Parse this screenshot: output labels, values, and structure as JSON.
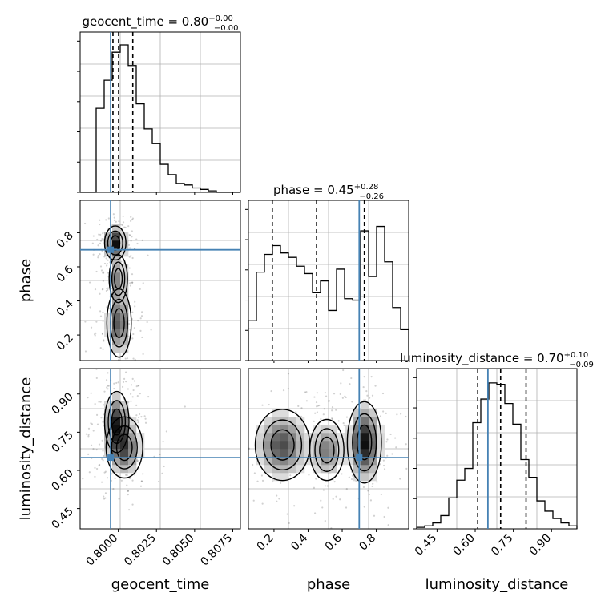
{
  "colors": {
    "truth": "#4682b4",
    "hist": "#000000",
    "grid": "#b0b0b0",
    "points": "#000000"
  },
  "chart_data": {
    "type": "corner",
    "parameters": [
      "geocent_time",
      "phase",
      "luminosity_distance"
    ],
    "truths": {
      "geocent_time": 0.7995,
      "phase": 0.7,
      "luminosity_distance": 0.65
    },
    "titles": {
      "geocent_time": {
        "prefix": "geocent_time = ",
        "median": "0.80",
        "plus": "+0.00",
        "minus": "−0.00"
      },
      "phase": {
        "prefix": "phase = ",
        "median": "0.45",
        "plus": "+0.28",
        "minus": "−0.26"
      },
      "luminosity_distance": {
        "prefix": "luminosity_distance = ",
        "median": "0.70",
        "plus": "+0.10",
        "minus": "−0.09"
      }
    },
    "ranges": {
      "geocent_time": [
        0.7975,
        0.808
      ],
      "phase": [
        0.05,
        0.99
      ],
      "luminosity_distance": [
        0.37,
        1.0
      ]
    },
    "ticks": {
      "geocent_time": [
        "0.8000",
        "0.8025",
        "0.8050",
        "0.8075"
      ],
      "phase": [
        "0.2",
        "0.4",
        "0.6",
        "0.8"
      ],
      "luminosity_distance": [
        "0.45",
        "0.60",
        "0.75",
        "0.90"
      ]
    },
    "quantiles": {
      "geocent_time": [
        0.79965,
        0.80002,
        0.80095
      ],
      "phase": [
        0.19,
        0.45,
        0.73
      ],
      "luminosity_distance": [
        0.61,
        0.7,
        0.8
      ]
    },
    "hist_1d": {
      "geocent_time": [
        0,
        0,
        0.57,
        0.76,
        0.95,
        1.0,
        0.86,
        0.6,
        0.43,
        0.33,
        0.19,
        0.12,
        0.06,
        0.05,
        0.03,
        0.02,
        0.01,
        0,
        0,
        0
      ],
      "phase": [
        0.27,
        0.6,
        0.72,
        0.78,
        0.73,
        0.7,
        0.64,
        0.59,
        0.46,
        0.54,
        0.34,
        0.62,
        0.42,
        0.41,
        0.88,
        0.57,
        0.91,
        0.67,
        0.36,
        0.21
      ],
      "luminosity_distance": [
        0.01,
        0.02,
        0.04,
        0.09,
        0.21,
        0.33,
        0.41,
        0.72,
        0.88,
        0.99,
        0.98,
        0.85,
        0.71,
        0.47,
        0.35,
        0.19,
        0.12,
        0.07,
        0.04,
        0.02
      ]
    },
    "density_2d": [
      {
        "pair": [
          "geocent_time",
          "phase"
        ],
        "peaks": [
          [
            0.7998,
            0.74,
            0.00035,
            0.05,
            1.0
          ],
          [
            0.8,
            0.53,
            0.0003,
            0.07,
            0.55
          ],
          [
            0.80005,
            0.27,
            0.0004,
            0.1,
            0.75
          ]
        ]
      },
      {
        "pair": [
          "geocent_time",
          "luminosity_distance"
        ],
        "peaks": [
          [
            0.7999,
            0.79,
            0.0004,
            0.06,
            0.9
          ],
          [
            0.8004,
            0.69,
            0.0006,
            0.06,
            0.8
          ]
        ]
      },
      {
        "pair": [
          "phase",
          "luminosity_distance"
        ],
        "peaks": [
          [
            0.25,
            0.7,
            0.08,
            0.07,
            0.75
          ],
          [
            0.51,
            0.68,
            0.05,
            0.06,
            0.55
          ],
          [
            0.73,
            0.71,
            0.05,
            0.08,
            1.0
          ]
        ]
      }
    ]
  }
}
